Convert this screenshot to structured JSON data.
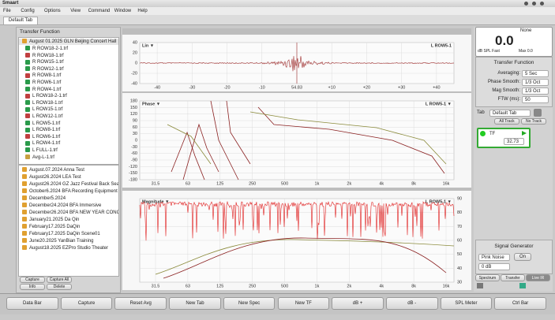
{
  "window": {
    "title": "Smaart"
  },
  "menu": [
    "File",
    "Config",
    "Options",
    "View",
    "Command",
    "Window",
    "Help"
  ],
  "tabs": [
    "Default Tab"
  ],
  "sidebar": {
    "title": "Transfer Function",
    "session": "August 01.2025 GLN Beijing Concert Hall",
    "files": [
      "R ROW18-2-1.trf",
      "R ROW18-1.trf",
      "R ROW15-1.trf",
      "R ROW12-1.trf",
      "R ROW8-1.trf",
      "R ROW6-1.trf",
      "R ROW4-1.trf",
      "L ROW18-2-1.trf",
      "L ROW18-1.trf",
      "L ROW15-1.trf",
      "L ROW12-1.trf",
      "L ROW5-1.trf",
      "L ROW8-1.trf",
      "L ROW6-1.trf",
      "L ROW4-1.trf",
      "L FULL-1.trf",
      "Avg-L-1.trf"
    ],
    "folders": [
      "August.07.2024 Anna Test",
      "August26.2024 LEA Test",
      "August26.2024 GZ Jazz Festival Back Seats",
      "October6.2024 BFA Recording Equipment",
      "December5.2024",
      "December24.2024 BFA Immersive",
      "December26.2024 BFA NEW YEAR CONCE",
      "January21.2025 Da Qin",
      "February17.2025 DaQin",
      "February17.2025 DaQin Scene01",
      "June20.2025 YanBian Training",
      "August18.2025 EZPro Studio Theater"
    ],
    "buttons": [
      "Capture",
      "Capture All",
      "Info",
      "Delete"
    ]
  },
  "plots": [
    {
      "label": "Lin ▼",
      "trace": "L ROW5-1",
      "yticks": [
        "40",
        "20",
        "0",
        "-20",
        "-40"
      ],
      "xticks": [
        "-40",
        "-30",
        "-20",
        "-10",
        "54.83",
        "+10",
        "+20",
        "+30",
        "+40"
      ]
    },
    {
      "label": "Phase ▼",
      "trace": "L ROW5-1 ▼",
      "yticks": [
        "180",
        "150",
        "120",
        "90",
        "60",
        "30",
        "0",
        "-30",
        "-60",
        "-90",
        "-120",
        "-150",
        "-180"
      ],
      "xticks": [
        "31.5",
        "63",
        "125",
        "250",
        "500",
        "1k",
        "2k",
        "4k",
        "8k",
        "16k"
      ]
    },
    {
      "label": "Magnitude ▼",
      "trace": "L ROW5-1 ▼",
      "yticks": [
        "90",
        "80",
        "70",
        "60",
        "50",
        "40",
        "30"
      ],
      "xticks": [
        "31.5",
        "63",
        "125",
        "250",
        "500",
        "1k",
        "2k",
        "4k",
        "8k",
        "16k"
      ]
    }
  ],
  "meter": {
    "name": "None",
    "value": "0.0",
    "mode": "dB SPL Fast",
    "max": "Max 0.0"
  },
  "tf_settings": {
    "title": "Transfer Function",
    "rows": [
      {
        "label": "Averaging:",
        "value": "5 Sec"
      },
      {
        "label": "Phase Smooth:",
        "value": "1/3 Oct"
      },
      {
        "label": "Mag Smooth:",
        "value": "1/3 Oct"
      },
      {
        "label": "FTW (ms):",
        "value": "50"
      }
    ]
  },
  "tab_control": {
    "label": "Tab",
    "value": "Default Tab",
    "buttons": [
      "All Track",
      "No Track"
    ]
  },
  "tf_item": {
    "name": "TF",
    "delay": "32.73"
  },
  "generator": {
    "title": "Signal Generator",
    "signal": "Pink Noise",
    "state": "On",
    "level": "0 dB"
  },
  "modes": [
    "Spectrum",
    "Transfer",
    "Live IR"
  ],
  "toolbar": [
    "Data Bar",
    "Capture",
    "Reset Avg",
    "New Tab",
    "New Spec",
    "New TF",
    "dB +",
    "dB -",
    "SPL Meter",
    "Ctrl Bar"
  ]
}
